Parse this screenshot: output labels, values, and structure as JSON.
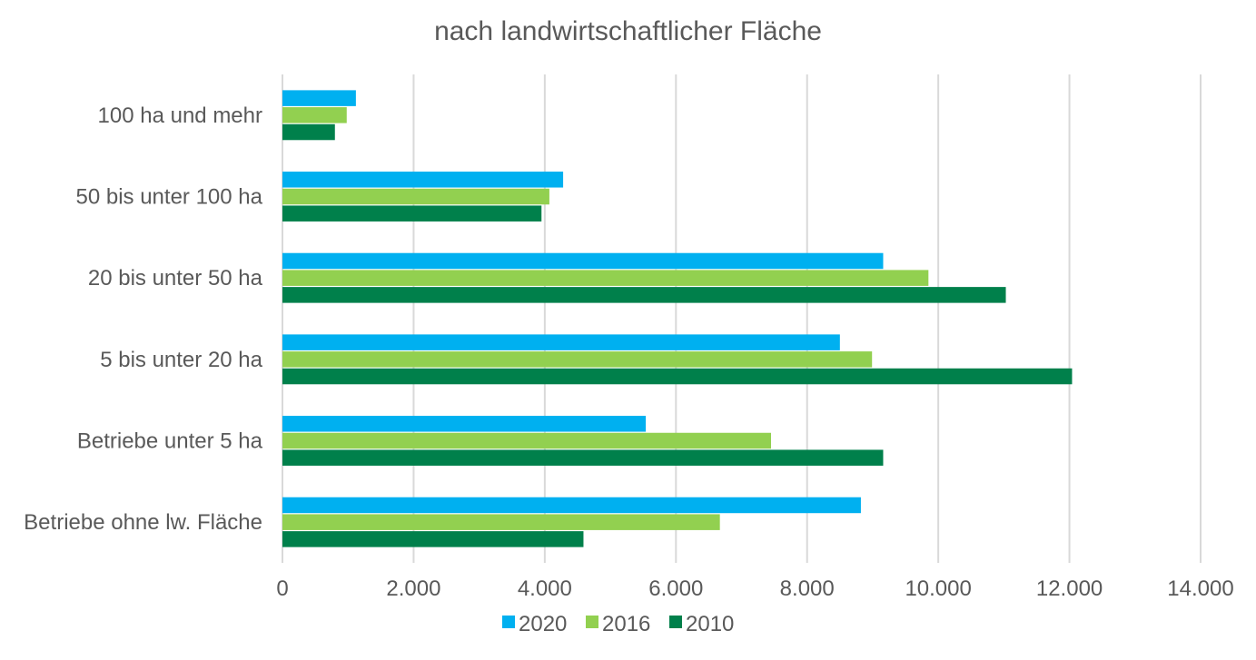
{
  "chart_data": {
    "type": "bar",
    "orientation": "horizontal",
    "title": "nach landwirtschaftlicher Fläche",
    "xlabel": "",
    "ylabel": "",
    "categories": [
      "100 ha und mehr",
      "50 bis unter 100 ha",
      "20 bis unter 50 ha",
      "5 bis unter 20 ha",
      "Betriebe unter 5 ha",
      "Betriebe ohne lw. Fläche"
    ],
    "series": [
      {
        "name": "2020",
        "color": "#00B0F0",
        "values": [
          1120,
          4280,
          9160,
          8500,
          5540,
          8820
        ]
      },
      {
        "name": "2016",
        "color": "#92D050",
        "values": [
          980,
          4070,
          9850,
          8990,
          7450,
          6670
        ]
      },
      {
        "name": "2010",
        "color": "#00804B",
        "values": [
          800,
          3950,
          11030,
          12040,
          9160,
          4590
        ]
      }
    ],
    "xlim": [
      0,
      14000
    ],
    "xticks": [
      0,
      2000,
      4000,
      6000,
      8000,
      10000,
      12000,
      14000
    ],
    "xtick_labels": [
      "0",
      "2.000",
      "4.000",
      "6.000",
      "8.000",
      "10.000",
      "12.000",
      "14.000"
    ],
    "grid": "vertical",
    "legend_position": "bottom"
  }
}
